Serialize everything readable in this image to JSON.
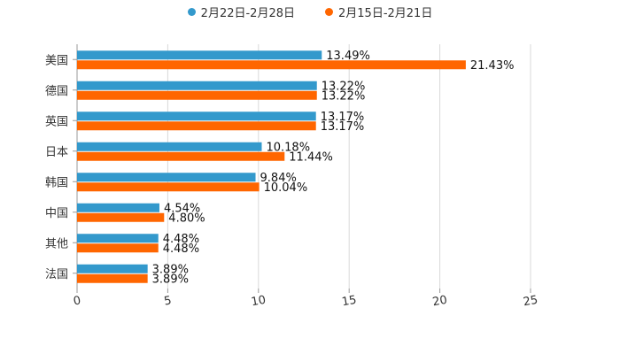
{
  "chart_data": {
    "type": "bar",
    "orientation": "horizontal",
    "categories": [
      "美国",
      "德国",
      "英国",
      "日本",
      "韩国",
      "中国",
      "其他",
      "法国"
    ],
    "series": [
      {
        "name": "2月22日-2月28日",
        "color": "#3399cc",
        "values": [
          13.49,
          13.22,
          13.17,
          10.18,
          9.84,
          4.54,
          4.48,
          3.89
        ],
        "labels": [
          "13.49%",
          "13.22%",
          "13.17%",
          "10.18%",
          "9.84%",
          "4.54%",
          "4.48%",
          "3.89%"
        ]
      },
      {
        "name": "2月15日-2月21日",
        "color": "#ff6600",
        "values": [
          21.43,
          13.22,
          13.17,
          11.44,
          10.04,
          4.8,
          4.48,
          3.89
        ],
        "labels": [
          "21.43%",
          "13.22%",
          "13.17%",
          "11.44%",
          "10.04%",
          "4.80%",
          "4.48%",
          "3.89%"
        ]
      }
    ],
    "xlim": [
      0,
      25
    ],
    "xticks": [
      0,
      5,
      10,
      15,
      20,
      25
    ],
    "xtick_labels": [
      "0",
      "5",
      "10",
      "15",
      "20",
      "25"
    ],
    "grid": true,
    "legend_position": "top-center",
    "title": "",
    "xlabel": "",
    "ylabel": ""
  }
}
